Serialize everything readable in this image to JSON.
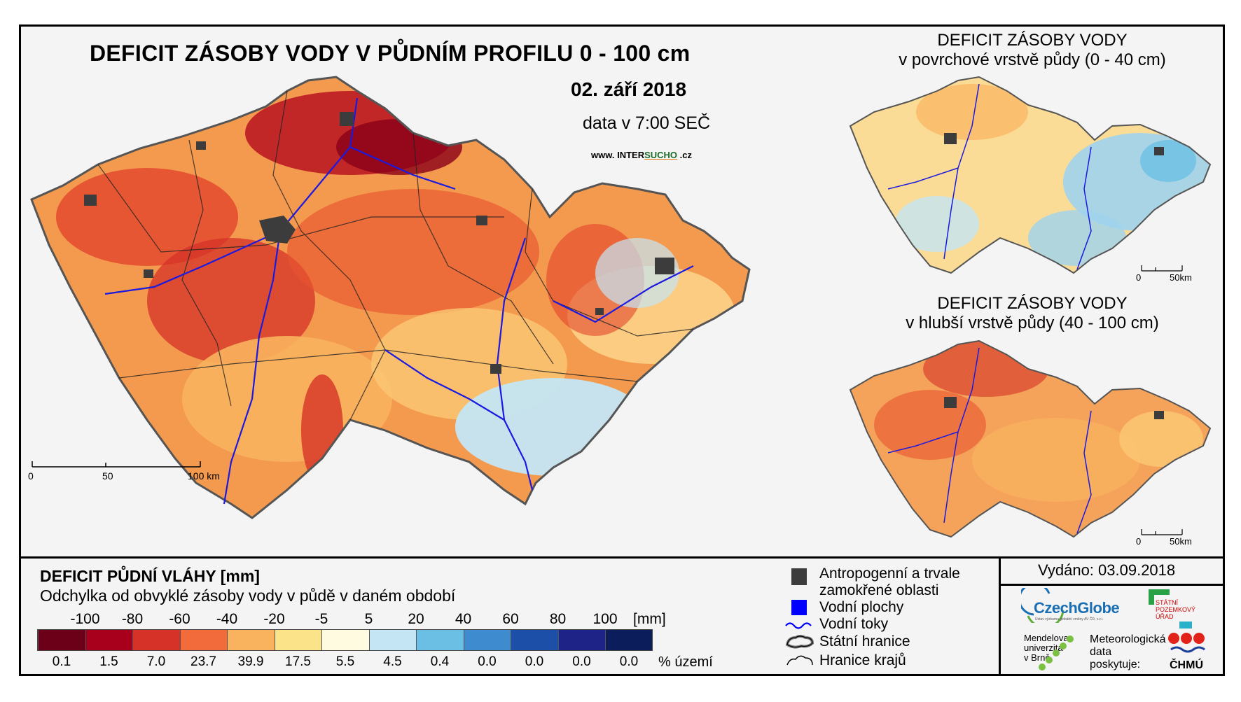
{
  "titles": {
    "main": "DEFICIT ZÁSOBY VODY V PŮDNÍM PROFILU 0 - 100 cm",
    "date": "02. září 2018",
    "time": "data v 7:00 SEČ",
    "web_prefix": "www. INTER",
    "web_highlight": "SUCHO",
    "web_suffix": " .cz"
  },
  "insets": [
    {
      "title_line1": "DEFICIT ZÁSOBY VODY",
      "title_line2": "v povrchové vrstvě půdy (0 - 40 cm)",
      "scale_0": "0",
      "scale_50": "50km"
    },
    {
      "title_line1": "DEFICIT ZÁSOBY VODY",
      "title_line2": "v hlubší vrstvě půdy (40 - 100 cm)",
      "scale_0": "0",
      "scale_50": "50km"
    }
  ],
  "main_scale": {
    "labels": [
      "0",
      "50",
      "100 km"
    ]
  },
  "legend": {
    "title": "DEFICIT PŮDNÍ VLÁHY [mm]",
    "subtitle": "Odchylka od obvyklé zásoby vody v půdě v daném období",
    "ticks": [
      "-100",
      "-80",
      "-60",
      "-40",
      "-20",
      "-5",
      "5",
      "20",
      "40",
      "60",
      "80",
      "100"
    ],
    "unit": "[mm]",
    "colors": [
      "#6b0018",
      "#a8001c",
      "#d63227",
      "#f26c3b",
      "#f9b25e",
      "#fbe38a",
      "#fffbe0",
      "#c4e6f4",
      "#6cbfe4",
      "#3e8bd0",
      "#1b4fa8",
      "#1e2388",
      "#0b1d5a"
    ],
    "percentages": [
      "0.1",
      "1.5",
      "7.0",
      "23.7",
      "39.9",
      "17.5",
      "5.5",
      "4.5",
      "0.4",
      "0.0",
      "0.0",
      "0.0",
      "0.0"
    ],
    "pct_unit": "% území"
  },
  "map_key": [
    {
      "label": "Antropogenní a trvale zamokřené oblasti",
      "line1": "Antropogenní a trvale",
      "line2": "zamokřené oblasti",
      "symbol": "dark-square",
      "color": "#3c3c3c"
    },
    {
      "label": "Vodní plochy",
      "symbol": "blue-square",
      "color": "#0000ff"
    },
    {
      "label": "Vodní toky",
      "symbol": "wavy-line",
      "color": "#0000ff"
    },
    {
      "label": "Státní hranice",
      "symbol": "double-outline"
    },
    {
      "label": "Hranice krajů",
      "symbol": "thin-outline"
    }
  ],
  "issued": "Vydáno: 03.09.2018",
  "logos": {
    "czechglobe": "CzechGlobe",
    "czechglobe_sub": "Ústav výzkumu globální změny AV ČR, v.v.i.",
    "spu_line1": "STÁTNÍ",
    "spu_line2": "POZEMKOVÝ",
    "spu_line3": "ÚŘAD",
    "mendel_line1": "Mendelova",
    "mendel_line2": "univerzita",
    "mendel_line3": "v Brně",
    "meteo_line1": "Meteorologická",
    "meteo_line2": "data",
    "meteo_line3": "poskytuje:",
    "chmu": "ČHMÚ"
  }
}
